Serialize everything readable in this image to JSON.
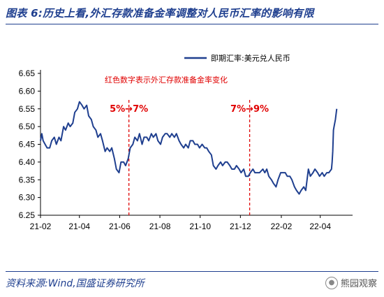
{
  "header": {
    "title": "图表 6:历史上看,外汇存款准备金率调整对人民币汇率的影响有限"
  },
  "footer": {
    "source": "资料来源:Wind,国盛证券研究所",
    "watermark": "熊园观察",
    "watermark_icon": "wechat-icon"
  },
  "chart_data": {
    "type": "line",
    "title": "",
    "xlabel": "",
    "ylabel": "",
    "ylim": [
      6.25,
      6.65
    ],
    "yticks": [
      "6.25",
      "6.30",
      "6.35",
      "6.40",
      "6.45",
      "6.50",
      "6.55",
      "6.60",
      "6.65"
    ],
    "xlim": [
      "2021-02-01",
      "2022-05-20"
    ],
    "xticks": [
      {
        "date": "2021-02-01",
        "label": "21-02"
      },
      {
        "date": "2021-04-01",
        "label": "21-04"
      },
      {
        "date": "2021-06-01",
        "label": "21-06"
      },
      {
        "date": "2021-08-01",
        "label": "21-08"
      },
      {
        "date": "2021-10-01",
        "label": "21-10"
      },
      {
        "date": "2021-12-01",
        "label": "21-12"
      },
      {
        "date": "2022-02-01",
        "label": "22-02"
      },
      {
        "date": "2022-04-01",
        "label": "22-04"
      }
    ],
    "legend": {
      "position": "top-right",
      "label": "即期汇率:美元兑人民币"
    },
    "note": "红色数字表示外汇存款准备金率变化",
    "line_color": "#1f3f8f",
    "annotation_color": "#e00000",
    "annotations": [
      {
        "date": "2021-06-15",
        "label": "5%→7%"
      },
      {
        "date": "2021-12-15",
        "label": "7%→9%"
      }
    ],
    "series": [
      {
        "name": "即期汇率:美元兑人民币",
        "points": [
          [
            "2021-02-01",
            6.46
          ],
          [
            "2021-02-03",
            6.48
          ],
          [
            "2021-02-05",
            6.46
          ],
          [
            "2021-02-08",
            6.45
          ],
          [
            "2021-02-11",
            6.44
          ],
          [
            "2021-02-15",
            6.44
          ],
          [
            "2021-02-18",
            6.46
          ],
          [
            "2021-02-22",
            6.47
          ],
          [
            "2021-02-25",
            6.45
          ],
          [
            "2021-03-01",
            6.47
          ],
          [
            "2021-03-04",
            6.46
          ],
          [
            "2021-03-08",
            6.5
          ],
          [
            "2021-03-11",
            6.49
          ],
          [
            "2021-03-15",
            6.51
          ],
          [
            "2021-03-18",
            6.5
          ],
          [
            "2021-03-22",
            6.51
          ],
          [
            "2021-03-25",
            6.54
          ],
          [
            "2021-03-29",
            6.55
          ],
          [
            "2021-04-01",
            6.57
          ],
          [
            "2021-04-05",
            6.56
          ],
          [
            "2021-04-08",
            6.55
          ],
          [
            "2021-04-12",
            6.56
          ],
          [
            "2021-04-15",
            6.53
          ],
          [
            "2021-04-19",
            6.52
          ],
          [
            "2021-04-22",
            6.5
          ],
          [
            "2021-04-26",
            6.49
          ],
          [
            "2021-04-29",
            6.47
          ],
          [
            "2021-05-03",
            6.48
          ],
          [
            "2021-05-06",
            6.46
          ],
          [
            "2021-05-10",
            6.43
          ],
          [
            "2021-05-13",
            6.44
          ],
          [
            "2021-05-17",
            6.43
          ],
          [
            "2021-05-20",
            6.44
          ],
          [
            "2021-05-24",
            6.41
          ],
          [
            "2021-05-27",
            6.38
          ],
          [
            "2021-05-31",
            6.37
          ],
          [
            "2021-06-03",
            6.4
          ],
          [
            "2021-06-07",
            6.4
          ],
          [
            "2021-06-10",
            6.39
          ],
          [
            "2021-06-14",
            6.41
          ],
          [
            "2021-06-17",
            6.44
          ],
          [
            "2021-06-21",
            6.45
          ],
          [
            "2021-06-24",
            6.47
          ],
          [
            "2021-06-28",
            6.46
          ],
          [
            "2021-07-01",
            6.48
          ],
          [
            "2021-07-05",
            6.45
          ],
          [
            "2021-07-08",
            6.47
          ],
          [
            "2021-07-12",
            6.47
          ],
          [
            "2021-07-15",
            6.46
          ],
          [
            "2021-07-19",
            6.48
          ],
          [
            "2021-07-22",
            6.47
          ],
          [
            "2021-07-26",
            6.48
          ],
          [
            "2021-07-29",
            6.46
          ],
          [
            "2021-08-02",
            6.45
          ],
          [
            "2021-08-05",
            6.47
          ],
          [
            "2021-08-09",
            6.48
          ],
          [
            "2021-08-12",
            6.48
          ],
          [
            "2021-08-16",
            6.47
          ],
          [
            "2021-08-19",
            6.48
          ],
          [
            "2021-08-23",
            6.47
          ],
          [
            "2021-08-26",
            6.48
          ],
          [
            "2021-08-30",
            6.46
          ],
          [
            "2021-09-02",
            6.45
          ],
          [
            "2021-09-06",
            6.44
          ],
          [
            "2021-09-09",
            6.45
          ],
          [
            "2021-09-13",
            6.44
          ],
          [
            "2021-09-16",
            6.46
          ],
          [
            "2021-09-20",
            6.46
          ],
          [
            "2021-09-23",
            6.45
          ],
          [
            "2021-09-27",
            6.45
          ],
          [
            "2021-09-30",
            6.44
          ],
          [
            "2021-10-04",
            6.45
          ],
          [
            "2021-10-08",
            6.44
          ],
          [
            "2021-10-11",
            6.44
          ],
          [
            "2021-10-14",
            6.43
          ],
          [
            "2021-10-18",
            6.42
          ],
          [
            "2021-10-21",
            6.39
          ],
          [
            "2021-10-25",
            6.38
          ],
          [
            "2021-10-28",
            6.39
          ],
          [
            "2021-11-01",
            6.4
          ],
          [
            "2021-11-04",
            6.39
          ],
          [
            "2021-11-08",
            6.4
          ],
          [
            "2021-11-11",
            6.4
          ],
          [
            "2021-11-15",
            6.39
          ],
          [
            "2021-11-18",
            6.38
          ],
          [
            "2021-11-22",
            6.38
          ],
          [
            "2021-11-25",
            6.39
          ],
          [
            "2021-11-29",
            6.38
          ],
          [
            "2021-12-02",
            6.37
          ],
          [
            "2021-12-06",
            6.38
          ],
          [
            "2021-12-09",
            6.36
          ],
          [
            "2021-12-13",
            6.36
          ],
          [
            "2021-12-16",
            6.37
          ],
          [
            "2021-12-20",
            6.38
          ],
          [
            "2021-12-23",
            6.37
          ],
          [
            "2021-12-27",
            6.37
          ],
          [
            "2021-12-30",
            6.37
          ],
          [
            "2022-01-04",
            6.38
          ],
          [
            "2022-01-07",
            6.37
          ],
          [
            "2022-01-10",
            6.38
          ],
          [
            "2022-01-13",
            6.36
          ],
          [
            "2022-01-17",
            6.35
          ],
          [
            "2022-01-20",
            6.34
          ],
          [
            "2022-01-24",
            6.33
          ],
          [
            "2022-01-27",
            6.35
          ],
          [
            "2022-01-31",
            6.37
          ],
          [
            "2022-02-03",
            6.37
          ],
          [
            "2022-02-07",
            6.37
          ],
          [
            "2022-02-10",
            6.36
          ],
          [
            "2022-02-14",
            6.36
          ],
          [
            "2022-02-17",
            6.35
          ],
          [
            "2022-02-21",
            6.33
          ],
          [
            "2022-02-24",
            6.32
          ],
          [
            "2022-02-28",
            6.31
          ],
          [
            "2022-03-03",
            6.32
          ],
          [
            "2022-03-07",
            6.33
          ],
          [
            "2022-03-10",
            6.32
          ],
          [
            "2022-03-14",
            6.38
          ],
          [
            "2022-03-17",
            6.36
          ],
          [
            "2022-03-21",
            6.37
          ],
          [
            "2022-03-24",
            6.38
          ],
          [
            "2022-03-28",
            6.37
          ],
          [
            "2022-03-31",
            6.36
          ],
          [
            "2022-04-04",
            6.37
          ],
          [
            "2022-04-07",
            6.36
          ],
          [
            "2022-04-11",
            6.37
          ],
          [
            "2022-04-14",
            6.37
          ],
          [
            "2022-04-18",
            6.38
          ],
          [
            "2022-04-19",
            6.4
          ],
          [
            "2022-04-20",
            6.43
          ],
          [
            "2022-04-21",
            6.49
          ],
          [
            "2022-04-22",
            6.5
          ],
          [
            "2022-04-24",
            6.52
          ],
          [
            "2022-04-26",
            6.55
          ]
        ]
      }
    ]
  }
}
